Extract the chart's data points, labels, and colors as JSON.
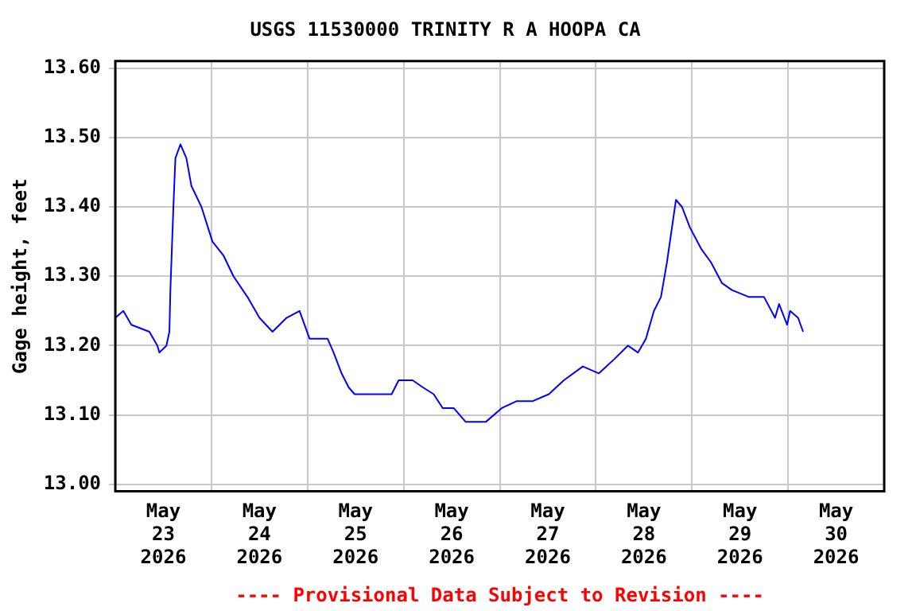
{
  "chart_data": {
    "type": "line",
    "title": "USGS 11530000 TRINITY R A HOOPA CA",
    "ylabel": "Gage height, feet",
    "annotations": [
      "---- Provisional Data Subject to Revision ----"
    ],
    "x": [
      "2026-05-23T00:00",
      "2026-05-23T02:00",
      "2026-05-23T04:00",
      "2026-05-23T08:30",
      "2026-05-23T10:30",
      "2026-05-23T11:00",
      "2026-05-23T12:45",
      "2026-05-23T13:30",
      "2026-05-23T13:45",
      "2026-05-23T14:30",
      "2026-05-23T15:00",
      "2026-05-23T16:15",
      "2026-05-23T17:45",
      "2026-05-23T19:00",
      "2026-05-23T21:30",
      "2026-05-24T00:15",
      "2026-05-24T03:00",
      "2026-05-24T05:30",
      "2026-05-24T09:00",
      "2026-05-24T12:00",
      "2026-05-24T15:15",
      "2026-05-24T18:45",
      "2026-05-24T22:00",
      "2026-05-25T00:30",
      "2026-05-25T05:00",
      "2026-05-25T06:30",
      "2026-05-25T08:30",
      "2026-05-25T10:15",
      "2026-05-25T11:45",
      "2026-05-25T15:30",
      "2026-05-25T21:00",
      "2026-05-25T22:45",
      "2026-05-26T02:15",
      "2026-05-26T04:45",
      "2026-05-26T07:30",
      "2026-05-26T09:45",
      "2026-05-26T12:30",
      "2026-05-26T15:30",
      "2026-05-26T20:30",
      "2026-05-27T00:30",
      "2026-05-27T04:15",
      "2026-05-27T08:15",
      "2026-05-27T12:15",
      "2026-05-27T16:00",
      "2026-05-27T20:45",
      "2026-05-28T00:45",
      "2026-05-28T04:30",
      "2026-05-28T08:00",
      "2026-05-28T10:30",
      "2026-05-28T12:30",
      "2026-05-28T14:30",
      "2026-05-28T16:15",
      "2026-05-28T17:45",
      "2026-05-28T18:45",
      "2026-05-28T20:00",
      "2026-05-28T21:30",
      "2026-05-28T23:30",
      "2026-05-29T02:15",
      "2026-05-29T04:45",
      "2026-05-29T07:30",
      "2026-05-29T10:00",
      "2026-05-29T14:15",
      "2026-05-29T18:00",
      "2026-05-29T20:45",
      "2026-05-29T21:45",
      "2026-05-29T23:45",
      "2026-05-30T00:30",
      "2026-05-30T02:30",
      "2026-05-30T03:45"
    ],
    "series": [
      {
        "color": "#0000ff",
        "values": [
          13.24,
          13.25,
          13.23,
          13.22,
          13.2,
          13.19,
          13.2,
          13.22,
          13.28,
          13.4,
          13.47,
          13.49,
          13.47,
          13.43,
          13.4,
          13.35,
          13.33,
          13.3,
          13.27,
          13.24,
          13.22,
          13.24,
          13.25,
          13.21,
          13.21,
          13.19,
          13.16,
          13.14,
          13.13,
          13.13,
          13.13,
          13.15,
          13.15,
          13.14,
          13.13,
          13.11,
          13.11,
          13.09,
          13.09,
          13.11,
          13.12,
          13.12,
          13.13,
          13.15,
          13.17,
          13.16,
          13.18,
          13.2,
          13.19,
          13.21,
          13.25,
          13.27,
          13.32,
          13.36,
          13.41,
          13.4,
          13.37,
          13.34,
          13.32,
          13.29,
          13.28,
          13.27,
          13.27,
          13.24,
          13.26,
          13.23,
          13.25,
          13.24,
          13.22
        ]
      }
    ],
    "xlim": [
      "2026-05-23T00:00",
      "2026-05-31T00:00"
    ],
    "xticks": [
      {
        "value": "2026-05-23T12:00",
        "label": "May 23 2026"
      },
      {
        "value": "2026-05-24T00:00",
        "label": null
      },
      {
        "value": "2026-05-24T12:00",
        "label": "May 24 2026"
      },
      {
        "value": "2026-05-25T00:00",
        "label": null
      },
      {
        "value": "2026-05-25T12:00",
        "label": "May 25 2026"
      },
      {
        "value": "2026-05-26T00:00",
        "label": null
      },
      {
        "value": "2026-05-26T12:00",
        "label": "May 26 2026"
      },
      {
        "value": "2026-05-27T00:00",
        "label": null
      },
      {
        "value": "2026-05-27T12:00",
        "label": "May 27 2026"
      },
      {
        "value": "2026-05-28T00:00",
        "label": null
      },
      {
        "value": "2026-05-28T12:00",
        "label": "May 28 2026"
      },
      {
        "value": "2026-05-29T00:00",
        "label": null
      },
      {
        "value": "2026-05-29T12:00",
        "label": "May 29 2026"
      },
      {
        "value": "2026-05-30T00:00",
        "label": null
      },
      {
        "value": "2026-05-30T12:00",
        "label": "May 30 2026"
      }
    ],
    "ylim": [
      12.99,
      13.61
    ],
    "yticks": [
      {
        "value": 13.0,
        "label": "13.00"
      },
      {
        "value": 13.1,
        "label": "13.10"
      },
      {
        "value": 13.2,
        "label": "13.20"
      },
      {
        "value": 13.3,
        "label": "13.30"
      },
      {
        "value": 13.4,
        "label": "13.40"
      },
      {
        "value": 13.5,
        "label": "13.50"
      },
      {
        "value": 13.6,
        "label": "13.60"
      }
    ],
    "grid": true,
    "legend": false,
    "marker": "none",
    "line_style": "solid"
  }
}
